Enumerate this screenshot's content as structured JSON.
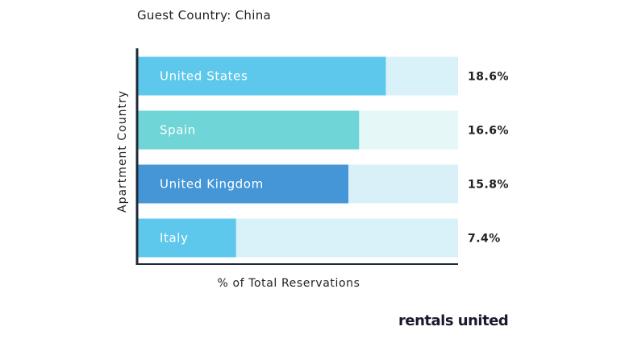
{
  "chart_data": {
    "type": "bar",
    "orientation": "horizontal",
    "title": "Guest Country: China",
    "xlabel": "% of Total Reservations",
    "ylabel": "Apartment Country",
    "categories": [
      "United States",
      "Spain",
      "United Kingdom",
      "Italy"
    ],
    "values": [
      18.6,
      16.6,
      15.8,
      7.4
    ],
    "value_labels": [
      "18.6%",
      "16.6%",
      "15.8%",
      "7.4%"
    ],
    "xlim": [
      0,
      24
    ],
    "grid": false,
    "colors": {
      "bars": [
        "#5ec8ec",
        "#6fd5d6",
        "#4496d6",
        "#5ec8ec"
      ],
      "tracks": [
        "#d9f1f9",
        "#e5f7f6",
        "#d9f0f8",
        "#d9f1f9"
      ],
      "axis": "#1f2937"
    }
  },
  "brand": {
    "logo_text": "rentals united"
  }
}
